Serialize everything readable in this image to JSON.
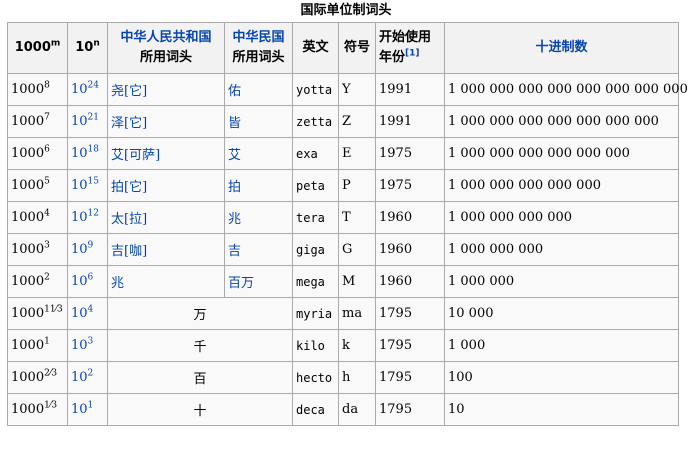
{
  "caption": "国际单位制词头",
  "headers": {
    "col1_base": "1000",
    "col1_exp": "m",
    "col2_base": "10",
    "col2_exp": "n",
    "prc_line1": "中华人民共和国",
    "prc_line2": "所用词头",
    "roc_line1": "中华民国",
    "roc_line2": "所用词头",
    "english": "英文",
    "symbol": "符号",
    "year_line1": "开始使用",
    "year_line2": "年份",
    "year_ref": "[1]",
    "decimal": "十进制数"
  },
  "rows": [
    {
      "p_base": "1000",
      "p_exp": "8",
      "t_base": "10",
      "t_exp": "24",
      "prc": "尧[它]",
      "roc": "佑",
      "en": "yotta",
      "sym": "Y",
      "year": "1991",
      "dec": "1 000 000 000 000 000 000 000 000"
    },
    {
      "p_base": "1000",
      "p_exp": "7",
      "t_base": "10",
      "t_exp": "21",
      "prc": "泽[它]",
      "roc": "皆",
      "en": "zetta",
      "sym": "Z",
      "year": "1991",
      "dec": "1 000 000 000 000 000 000 000"
    },
    {
      "p_base": "1000",
      "p_exp": "6",
      "t_base": "10",
      "t_exp": "18",
      "prc": "艾[可萨]",
      "roc": "艾",
      "en": "exa",
      "sym": "E",
      "year": "1975",
      "dec": "1 000 000 000 000 000 000"
    },
    {
      "p_base": "1000",
      "p_exp": "5",
      "t_base": "10",
      "t_exp": "15",
      "prc": "拍[它]",
      "roc": "拍",
      "en": "peta",
      "sym": "P",
      "year": "1975",
      "dec": "1 000 000 000 000 000"
    },
    {
      "p_base": "1000",
      "p_exp": "4",
      "t_base": "10",
      "t_exp": "12",
      "prc": "太[拉]",
      "roc": "兆",
      "en": "tera",
      "sym": "T",
      "year": "1960",
      "dec": "1 000 000 000 000"
    },
    {
      "p_base": "1000",
      "p_exp": "3",
      "t_base": "10",
      "t_exp": "9",
      "prc": "吉[咖]",
      "roc": "吉",
      "en": "giga",
      "sym": "G",
      "year": "1960",
      "dec": "1 000 000 000"
    },
    {
      "p_base": "1000",
      "p_exp": "2",
      "t_base": "10",
      "t_exp": "6",
      "prc": "兆",
      "roc": "百万",
      "en": "mega",
      "sym": "M",
      "year": "1960",
      "dec": "1  000  000"
    }
  ],
  "merged_rows": [
    {
      "p_base": "1000",
      "p_exp_int": "1",
      "p_exp_frac": "1⁄3",
      "t_base": "10",
      "t_exp": "4",
      "both": "万",
      "en": "myria",
      "sym": "ma",
      "year": "1795",
      "dec": "10  000"
    },
    {
      "p_base": "1000",
      "p_exp_int": "1",
      "p_exp_frac": "",
      "t_base": "10",
      "t_exp": "3",
      "both": "千",
      "en": "kilo",
      "sym": "k",
      "year": "1795",
      "dec": "1 000"
    },
    {
      "p_base": "1000",
      "p_exp_int": "",
      "p_exp_frac": "2⁄3",
      "t_base": "10",
      "t_exp": "2",
      "both": "百",
      "en": "hecto",
      "sym": "h",
      "year": "1795",
      "dec": "100"
    },
    {
      "p_base": "1000",
      "p_exp_int": "",
      "p_exp_frac": "1⁄3",
      "t_base": "10",
      "t_exp": "1",
      "both": "十",
      "en": "deca",
      "sym": "da",
      "year": "1795",
      "dec": "10"
    }
  ]
}
